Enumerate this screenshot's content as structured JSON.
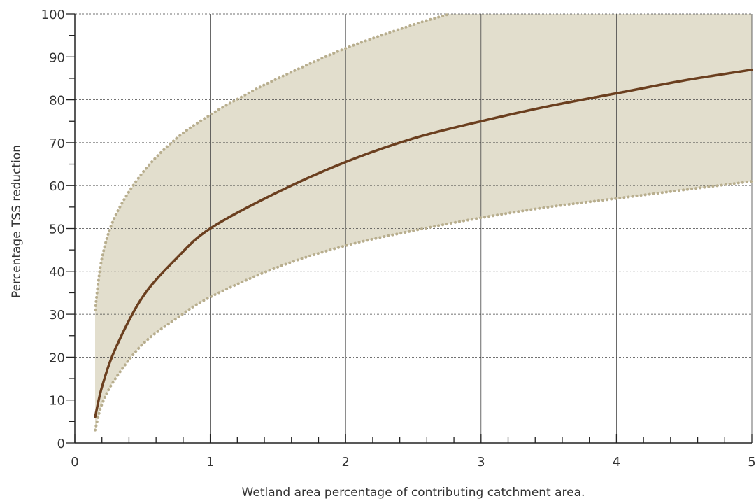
{
  "chart_data": {
    "type": "line",
    "xlabel": "Wetland area percentage of contributing catchment area.",
    "ylabel": "Percentage TSS reduction",
    "xlim": [
      0,
      5
    ],
    "ylim": [
      0,
      100
    ],
    "x_ticks": [
      0,
      1,
      2,
      3,
      4,
      5
    ],
    "y_ticks": [
      0,
      10,
      20,
      30,
      40,
      50,
      60,
      70,
      80,
      90,
      100
    ],
    "grid": {
      "vertical": true,
      "horizontal": true
    },
    "series": [
      {
        "role": "mean",
        "style": "solid",
        "x": [
          0.15,
          0.2,
          0.3,
          0.5,
          0.75,
          1,
          1.5,
          2,
          2.5,
          3,
          3.5,
          4,
          4.5,
          5
        ],
        "y": [
          6,
          13,
          22,
          34,
          43,
          50,
          58.5,
          65.5,
          71,
          75,
          78.5,
          81.5,
          84.5,
          87
        ]
      },
      {
        "role": "upper",
        "style": "dotted",
        "x": [
          0.15,
          0.2,
          0.3,
          0.5,
          0.75,
          1,
          1.25,
          1.5,
          2,
          2.5,
          2.77
        ],
        "y": [
          31,
          43,
          53,
          63,
          71,
          76.5,
          81,
          85,
          92,
          97.5,
          100
        ]
      },
      {
        "role": "lower",
        "style": "dotted",
        "x": [
          0.15,
          0.2,
          0.3,
          0.5,
          0.75,
          1,
          1.5,
          2,
          2.5,
          3,
          3.5,
          4,
          4.5,
          5
        ],
        "y": [
          3,
          9,
          15,
          23,
          29,
          34,
          41,
          46,
          49.5,
          52.5,
          55,
          57,
          59,
          61
        ]
      }
    ],
    "colors": {
      "band": "#e2decd",
      "mean_line": "#6b3f1f",
      "bound_dots": "#b8ae8e",
      "grid": "#444444",
      "axis": "#222222"
    }
  }
}
